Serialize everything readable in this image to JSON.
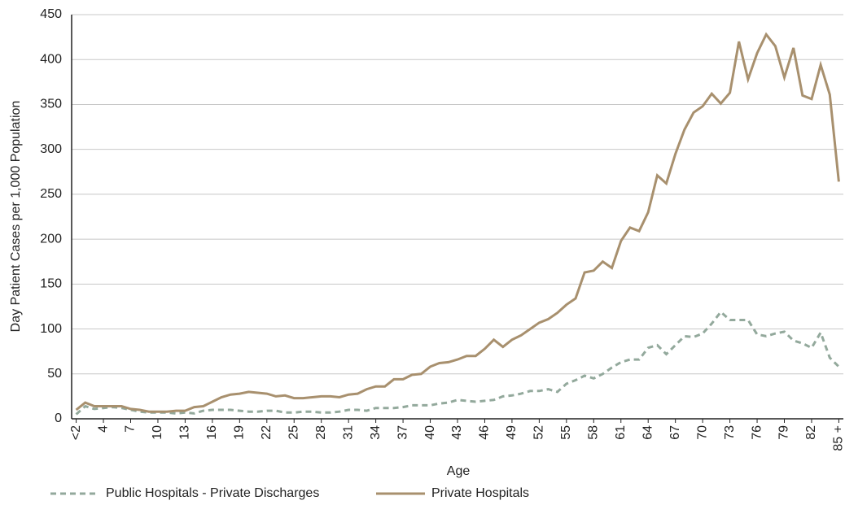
{
  "chart_data": {
    "type": "line",
    "x_label": "Age",
    "y_label": "Day Patient Cases per 1,000 Population",
    "categories": [
      "<2",
      null,
      null,
      "4",
      null,
      null,
      "7",
      null,
      null,
      "10",
      null,
      null,
      "13",
      null,
      null,
      "16",
      null,
      null,
      "19",
      null,
      null,
      "22",
      null,
      null,
      "25",
      null,
      null,
      "28",
      null,
      null,
      "31",
      null,
      null,
      "34",
      null,
      null,
      "37",
      null,
      null,
      "40",
      null,
      null,
      "43",
      null,
      null,
      "46",
      null,
      null,
      "49",
      null,
      null,
      "52",
      null,
      null,
      "55",
      null,
      null,
      "58",
      null,
      null,
      "61",
      null,
      null,
      "64",
      null,
      null,
      "67",
      null,
      null,
      "70",
      null,
      null,
      "73",
      null,
      null,
      "76",
      null,
      null,
      "79",
      null,
      null,
      "82",
      null,
      null,
      "85 +"
    ],
    "series": [
      {
        "name": "Public Hospitals - Private Discharges",
        "color": "#93a99c",
        "dashed": true,
        "values": [
          5,
          14,
          11,
          12,
          13,
          12,
          10,
          8,
          7,
          7,
          7,
          6,
          7,
          6,
          9,
          10,
          10,
          10,
          9,
          8,
          8,
          9,
          9,
          7,
          7,
          8,
          8,
          7,
          7,
          8,
          10,
          10,
          9,
          12,
          12,
          12,
          13,
          15,
          15,
          15,
          17,
          18,
          21,
          20,
          19,
          20,
          21,
          25,
          26,
          28,
          31,
          31,
          33,
          30,
          39,
          43,
          48,
          45,
          50,
          57,
          63,
          66,
          66,
          79,
          82,
          72,
          82,
          92,
          91,
          95,
          106,
          119,
          110,
          110,
          110,
          94,
          92,
          95,
          97,
          87,
          84,
          79,
          96,
          68,
          58
        ]
      },
      {
        "name": "Private Hospitals",
        "color": "#a8906e",
        "dashed": false,
        "values": [
          10,
          18,
          14,
          14,
          14,
          14,
          11,
          10,
          8,
          8,
          8,
          9,
          9,
          13,
          14,
          19,
          24,
          27,
          28,
          30,
          29,
          28,
          25,
          26,
          23,
          23,
          24,
          25,
          25,
          24,
          27,
          28,
          33,
          36,
          36,
          44,
          44,
          49,
          50,
          58,
          62,
          63,
          66,
          70,
          70,
          78,
          88,
          80,
          88,
          93,
          100,
          107,
          111,
          118,
          127,
          134,
          163,
          165,
          175,
          168,
          198,
          213,
          209,
          230,
          271,
          262,
          295,
          322,
          341,
          348,
          362,
          351,
          363,
          420,
          378,
          407,
          428,
          415,
          380,
          413,
          360,
          356,
          394,
          361,
          264
        ]
      }
    ],
    "ylim": [
      0,
      450
    ],
    "yticks": [
      0,
      50,
      100,
      150,
      200,
      250,
      300,
      350,
      400,
      450
    ],
    "grid": true,
    "legend": "bottom"
  }
}
